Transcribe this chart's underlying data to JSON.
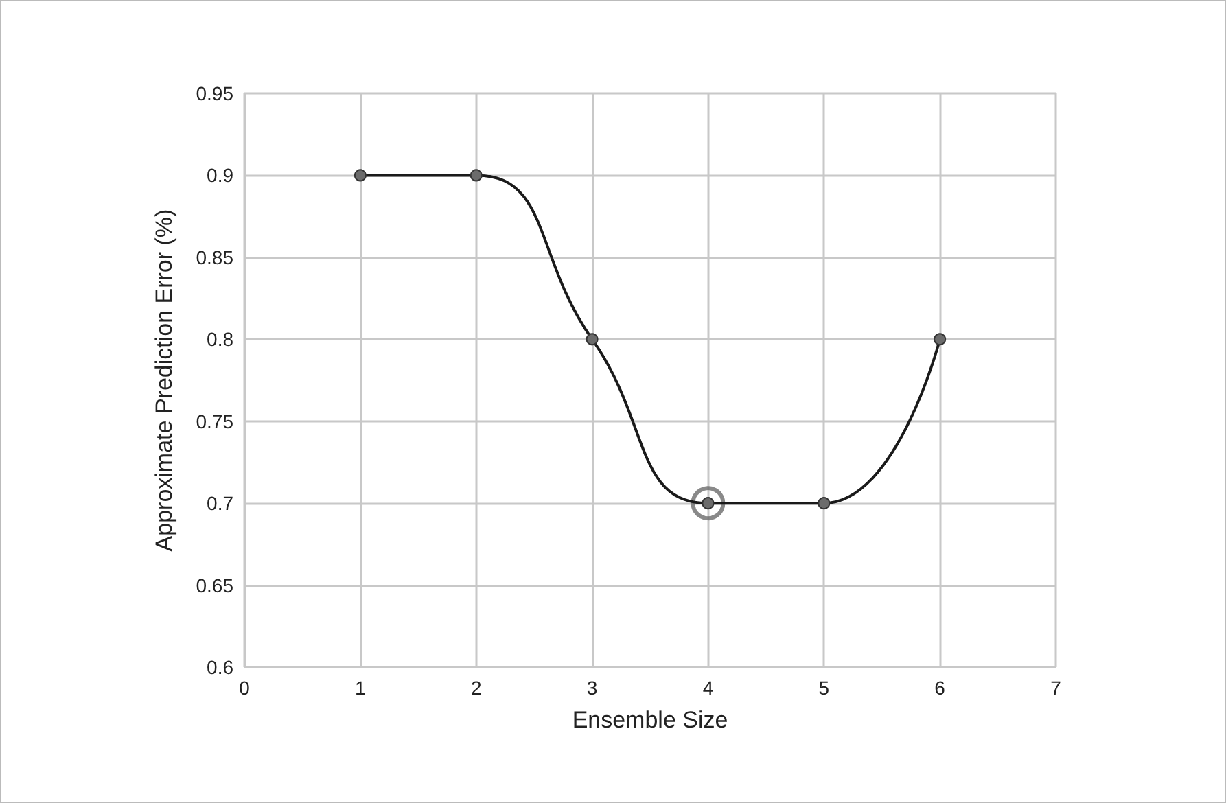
{
  "chart_data": {
    "type": "line",
    "xlabel": "Ensemble Size",
    "ylabel": "Approximate Prediction Error (%)",
    "x": [
      1,
      2,
      3,
      4,
      5,
      6
    ],
    "series": [
      {
        "color": "#1a1a1a",
        "values": [
          0.9,
          0.9,
          0.8,
          0.7,
          0.7,
          0.8
        ]
      },
      {
        "type": "scatter",
        "color": "#6b6b6b",
        "x": [
          4
        ],
        "values": [
          0.7
        ]
      }
    ],
    "xlim": [
      0,
      7
    ],
    "xticks": [
      0,
      1,
      2,
      3,
      4,
      5,
      6,
      7
    ],
    "ylim": [
      0.6,
      0.95
    ],
    "yticks": [
      0.6,
      0.65,
      0.7,
      0.75,
      0.8,
      0.85,
      0.9,
      0.95
    ],
    "grid": true,
    "marker": "circle",
    "line_style": "solid"
  }
}
